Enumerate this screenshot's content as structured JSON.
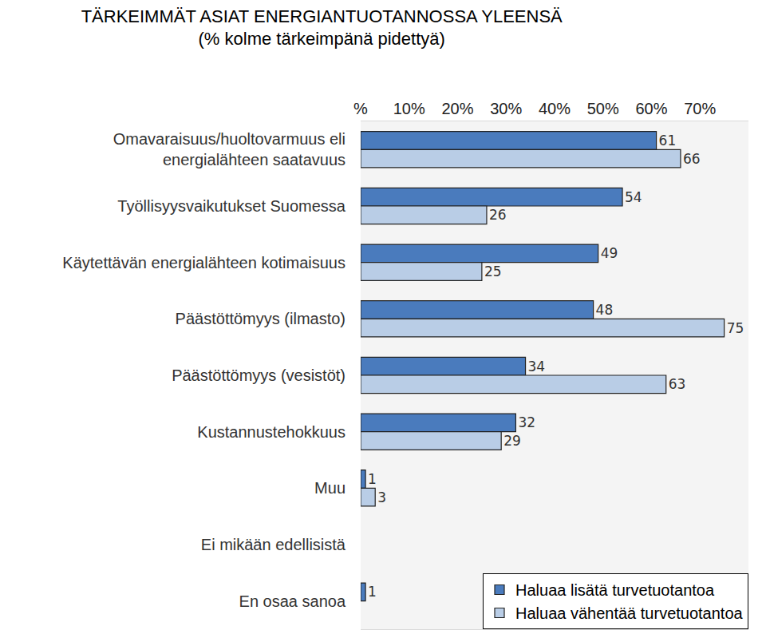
{
  "chart_data": {
    "type": "bar",
    "orientation": "horizontal",
    "title": "TÄRKEIMMÄT ASIAT ENERGIANTUOTANNOSSA YLEENSÄ",
    "subtitle": "(% kolme tärkeimpänä pidettyä)",
    "categories": [
      "Omavaraisuus/huoltovarmuus eli energialähteen saatavuus",
      "Työllisyysvaikutukset Suomessa",
      "Käytettävän energialähteen kotimaisuus",
      "Päästöttömyys (ilmasto)",
      "Päästöttömyys (vesistöt)",
      "Kustannustehokkuus",
      "Muu",
      "Ei mikään edellisistä",
      "En osaa sanoa"
    ],
    "series": [
      {
        "name": "Haluaa lisätä turvetuotantoa",
        "color": "#4a7bbd",
        "values": [
          61,
          54,
          49,
          48,
          34,
          32,
          1,
          null,
          1
        ]
      },
      {
        "name": "Haluaa vähentää turvetuotantoa",
        "color": "#b9cde6",
        "values": [
          66,
          26,
          25,
          75,
          63,
          29,
          3,
          null,
          null
        ]
      }
    ],
    "xlim": [
      0,
      80
    ],
    "xticks": [
      {
        "value": 0,
        "label": "%"
      },
      {
        "value": 10,
        "label": "10%"
      },
      {
        "value": 20,
        "label": "20%"
      },
      {
        "value": 30,
        "label": "30%"
      },
      {
        "value": 40,
        "label": "40%"
      },
      {
        "value": 50,
        "label": "50%"
      },
      {
        "value": 60,
        "label": "60%"
      },
      {
        "value": 70,
        "label": "70%"
      }
    ],
    "grid": false,
    "legend": "bottom right",
    "data_labels": true
  }
}
